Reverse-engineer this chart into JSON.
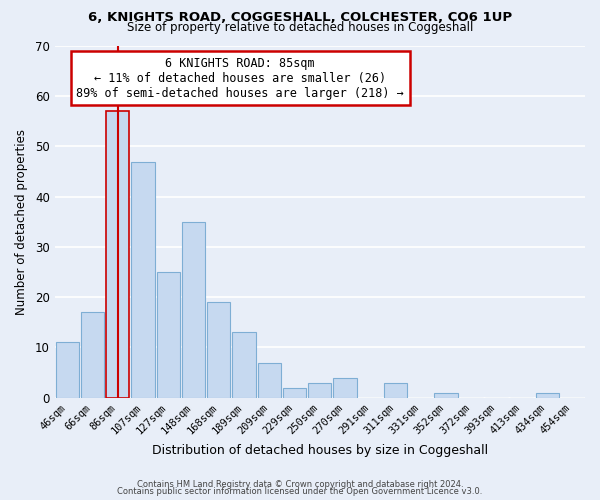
{
  "title1": "6, KNIGHTS ROAD, COGGESHALL, COLCHESTER, CO6 1UP",
  "title2": "Size of property relative to detached houses in Coggeshall",
  "xlabel": "Distribution of detached houses by size in Coggeshall",
  "ylabel": "Number of detached properties",
  "footer1": "Contains HM Land Registry data © Crown copyright and database right 2024.",
  "footer2": "Contains public sector information licensed under the Open Government Licence v3.0.",
  "bar_labels": [
    "46sqm",
    "66sqm",
    "86sqm",
    "107sqm",
    "127sqm",
    "148sqm",
    "168sqm",
    "189sqm",
    "209sqm",
    "229sqm",
    "250sqm",
    "270sqm",
    "291sqm",
    "311sqm",
    "331sqm",
    "352sqm",
    "372sqm",
    "393sqm",
    "413sqm",
    "434sqm",
    "454sqm"
  ],
  "bar_values": [
    11,
    17,
    57,
    47,
    25,
    35,
    19,
    13,
    7,
    2,
    3,
    4,
    0,
    3,
    0,
    1,
    0,
    0,
    0,
    1,
    0
  ],
  "bar_color": "#c6d9f0",
  "bar_edge_color": "#7eaed4",
  "highlight_bar_index": 2,
  "highlight_edge_color": "#cc0000",
  "annotation_text": "6 KNIGHTS ROAD: 85sqm\n← 11% of detached houses are smaller (26)\n89% of semi-detached houses are larger (218) →",
  "annotation_box_color": "white",
  "annotation_box_edge_color": "#cc0000",
  "marker_color": "#cc0000",
  "ylim": [
    0,
    70
  ],
  "yticks": [
    0,
    10,
    20,
    30,
    40,
    50,
    60,
    70
  ],
  "background_color": "#e8eef8",
  "grid_color": "white",
  "title1_fontsize": 9.5,
  "title2_fontsize": 8.5
}
